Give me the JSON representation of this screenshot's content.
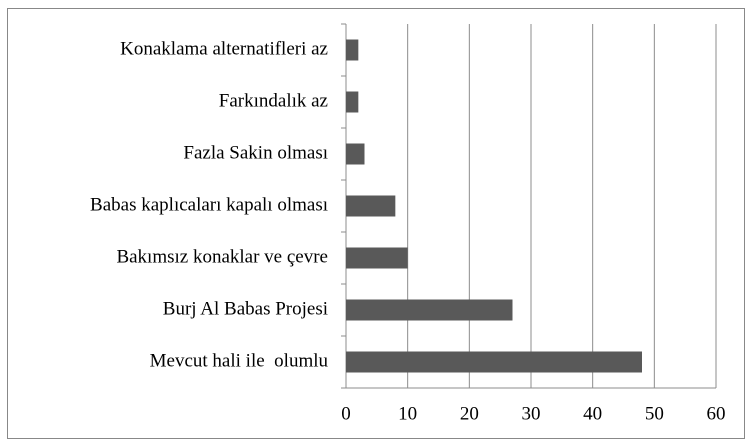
{
  "chart_data": {
    "type": "bar",
    "orientation": "horizontal",
    "categories": [
      "Konaklama alternatifleri az",
      "Farkındalık az",
      "Fazla Sakin olması",
      "Babas kaplıcaları kapalı olması",
      "Bakımsız konaklar ve çevre",
      "Burj Al Babas Projesi",
      "Mevcut hali ile  olumlu"
    ],
    "values": [
      2,
      2,
      3,
      8,
      10,
      27,
      48
    ],
    "color": "#595959",
    "xlim": [
      0,
      60
    ],
    "xticks": [
      0,
      10,
      20,
      30,
      40,
      50,
      60
    ],
    "grid": true
  }
}
